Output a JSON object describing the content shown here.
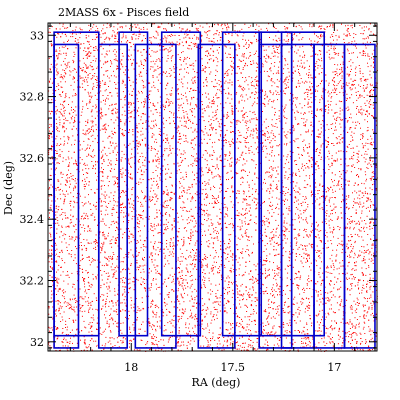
{
  "chart_data": {
    "type": "scatter",
    "title": "2MASS 6x - Pisces field",
    "xlabel": "RA (deg)",
    "ylabel": "Dec (deg)",
    "xlim": [
      18.41,
      16.79
    ],
    "ylim": [
      31.97,
      33.04
    ],
    "x_direction": "reversed",
    "xticks": [
      {
        "value": 18,
        "label": "18"
      },
      {
        "value": 17.5,
        "label": "17.5"
      },
      {
        "value": 17,
        "label": "17"
      }
    ],
    "yticks": [
      {
        "value": 32,
        "label": "32"
      },
      {
        "value": 32.2,
        "label": "32.2"
      },
      {
        "value": 32.4,
        "label": "32.4"
      },
      {
        "value": 32.6,
        "label": "32.6"
      },
      {
        "value": 32.8,
        "label": "32.8"
      },
      {
        "value": 33,
        "label": "33"
      }
    ],
    "grid": false,
    "series": [
      {
        "kind": "points",
        "color": "#ff0000",
        "count": 9000,
        "ra_range": [
          18.41,
          16.79
        ],
        "dec_range": [
          31.97,
          33.04
        ]
      },
      {
        "kind": "rectangles",
        "color": "#0000cc",
        "boxes": [
          {
            "ra": [
              18.38,
              18.26
            ],
            "dec": [
              31.98,
              32.97
            ]
          },
          {
            "ra": [
              18.38,
              18.16
            ],
            "dec": [
              32.02,
              33.01
            ]
          },
          {
            "ra": [
              18.16,
              18.02
            ],
            "dec": [
              31.98,
              32.97
            ]
          },
          {
            "ra": [
              18.06,
              17.92
            ],
            "dec": [
              32.02,
              33.01
            ]
          },
          {
            "ra": [
              17.98,
              17.78
            ],
            "dec": [
              31.98,
              32.97
            ]
          },
          {
            "ra": [
              17.85,
              17.66
            ],
            "dec": [
              32.02,
              33.01
            ]
          },
          {
            "ra": [
              17.67,
              17.49
            ],
            "dec": [
              31.98,
              32.97
            ]
          },
          {
            "ra": [
              17.55,
              17.36
            ],
            "dec": [
              32.02,
              33.01
            ]
          },
          {
            "ra": [
              17.37,
              17.21
            ],
            "dec": [
              31.98,
              32.97
            ]
          },
          {
            "ra": [
              17.37,
              17.21
            ],
            "dec": [
              32.02,
              33.01
            ]
          },
          {
            "ra": [
              17.26,
              17.1
            ],
            "dec": [
              31.98,
              32.97
            ]
          },
          {
            "ra": [
              17.26,
              17.05
            ],
            "dec": [
              32.02,
              33.01
            ]
          },
          {
            "ra": [
              17.1,
              16.95
            ],
            "dec": [
              31.98,
              32.97
            ]
          },
          {
            "ra": [
              16.95,
              16.8
            ],
            "dec": [
              31.98,
              32.97
            ]
          }
        ]
      }
    ]
  }
}
